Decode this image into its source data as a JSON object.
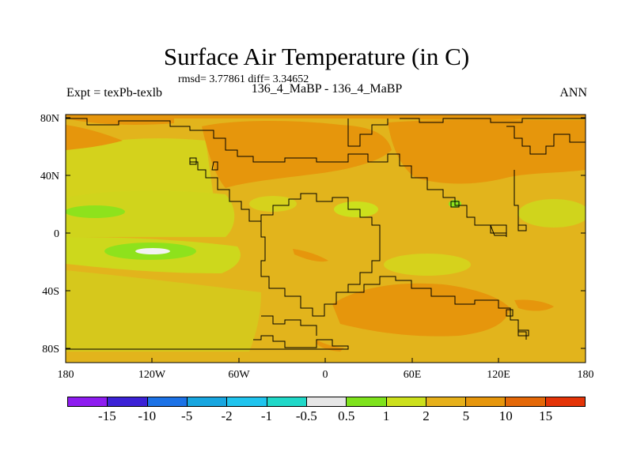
{
  "title": "Surface Air Temperature (in C)",
  "stats": "rmsd= 3.77861 diff= 3.34652",
  "experiment_label": "Expt = texPb-texlb",
  "comparison": "136_4_MaBP - 136_4_MaBP",
  "season": "ANN",
  "map": {
    "latitude_ticks": [
      "80N",
      "40N",
      "0",
      "40S",
      "80S"
    ],
    "longitude_ticks": [
      "180",
      "120W",
      "60W",
      "0",
      "60E",
      "120E",
      "180"
    ]
  },
  "colorbar": {
    "colors": [
      "#8e1cf0",
      "#3c22d6",
      "#1c72e6",
      "#18a6e0",
      "#20c4ee",
      "#20d8c8",
      "#e6e6e6",
      "#7ee21c",
      "#cce01c",
      "#e6b01a",
      "#e6960c",
      "#e46808",
      "#e43408"
    ],
    "labels": [
      "-15",
      "-10",
      "-5",
      "-2",
      "-1",
      "-0.5",
      "0.5",
      "1",
      "2",
      "5",
      "10",
      "15"
    ]
  }
}
